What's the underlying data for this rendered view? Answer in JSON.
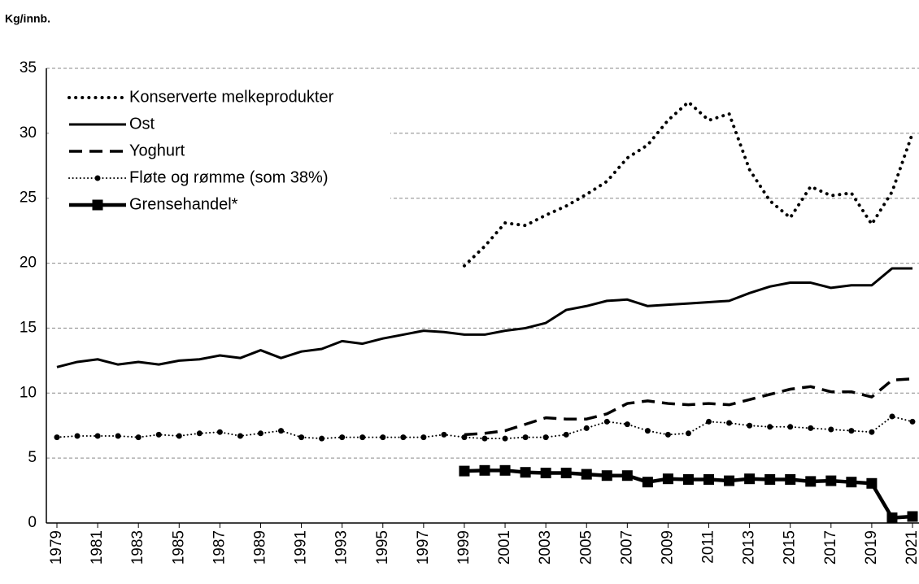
{
  "chart_data": {
    "type": "line",
    "y_axis_label": "Kg/innb.",
    "x": [
      1979,
      1980,
      1981,
      1982,
      1983,
      1984,
      1985,
      1986,
      1987,
      1988,
      1989,
      1990,
      1991,
      1992,
      1993,
      1994,
      1995,
      1996,
      1997,
      1998,
      1999,
      2000,
      2001,
      2002,
      2003,
      2004,
      2005,
      2006,
      2007,
      2008,
      2009,
      2010,
      2011,
      2012,
      2013,
      2014,
      2015,
      2016,
      2017,
      2018,
      2019,
      2020,
      2021
    ],
    "xlim": [
      1979,
      2021
    ],
    "xticks": [
      1979,
      1981,
      1983,
      1985,
      1987,
      1989,
      1991,
      1993,
      1995,
      1997,
      1999,
      2001,
      2003,
      2005,
      2007,
      2009,
      2011,
      2013,
      2015,
      2017,
      2019,
      2021
    ],
    "ylim": [
      0,
      35
    ],
    "yticks": [
      0,
      5,
      10,
      15,
      20,
      25,
      30,
      35
    ],
    "grid": true,
    "legend": "upper left",
    "series": [
      {
        "name": "Konserverte melkeprodukter",
        "color": "#000000",
        "line_style": "dotted-thick",
        "marker": null,
        "values": [
          null,
          null,
          null,
          null,
          null,
          null,
          null,
          null,
          null,
          null,
          null,
          null,
          null,
          null,
          null,
          null,
          null,
          null,
          null,
          null,
          19.8,
          21.3,
          23.1,
          22.9,
          23.7,
          24.4,
          25.3,
          26.3,
          28.1,
          29.1,
          31.0,
          32.4,
          31.0,
          31.5,
          27.2,
          24.8,
          23.5,
          25.9,
          25.2,
          25.4,
          23.0,
          25.5,
          30.0
        ]
      },
      {
        "name": "Ost",
        "color": "#000000",
        "line_style": "solid",
        "marker": null,
        "values": [
          12.0,
          12.4,
          12.6,
          12.2,
          12.4,
          12.2,
          12.5,
          12.6,
          12.9,
          12.7,
          13.3,
          12.7,
          13.2,
          13.4,
          14.0,
          13.8,
          14.2,
          14.5,
          14.8,
          14.7,
          14.5,
          14.5,
          14.8,
          15.0,
          15.4,
          16.4,
          16.7,
          17.1,
          17.2,
          16.7,
          16.8,
          16.9,
          17.0,
          17.1,
          17.7,
          18.2,
          18.5,
          18.5,
          18.1,
          18.3,
          18.3,
          19.6,
          19.6
        ]
      },
      {
        "name": "Yoghurt",
        "color": "#000000",
        "line_style": "dashed",
        "marker": null,
        "values": [
          null,
          null,
          null,
          null,
          null,
          null,
          null,
          null,
          null,
          null,
          null,
          null,
          null,
          null,
          null,
          null,
          null,
          null,
          null,
          null,
          6.8,
          6.9,
          7.1,
          7.6,
          8.1,
          8.0,
          8.0,
          8.4,
          9.2,
          9.4,
          9.2,
          9.1,
          9.2,
          9.1,
          9.5,
          9.9,
          10.3,
          10.5,
          10.1,
          10.1,
          9.7,
          11.0,
          11.1
        ]
      },
      {
        "name": "Fløte og rømme (som 38%)",
        "color": "#000000",
        "line_style": "dotted-thin",
        "marker": "circle",
        "values": [
          6.6,
          6.7,
          6.7,
          6.7,
          6.6,
          6.8,
          6.7,
          6.9,
          7.0,
          6.7,
          6.9,
          7.1,
          6.6,
          6.5,
          6.6,
          6.6,
          6.6,
          6.6,
          6.6,
          6.8,
          6.6,
          6.5,
          6.5,
          6.6,
          6.6,
          6.8,
          7.3,
          7.8,
          7.6,
          7.1,
          6.8,
          6.9,
          7.8,
          7.7,
          7.5,
          7.4,
          7.4,
          7.3,
          7.2,
          7.1,
          7.0,
          8.2,
          7.8
        ]
      },
      {
        "name": "Grensehandel*",
        "color": "#000000",
        "line_style": "solid-thick",
        "marker": "square",
        "values": [
          null,
          null,
          null,
          null,
          null,
          null,
          null,
          null,
          null,
          null,
          null,
          null,
          null,
          null,
          null,
          null,
          null,
          null,
          null,
          null,
          4.0,
          4.05,
          4.05,
          3.9,
          3.85,
          3.85,
          3.75,
          3.65,
          3.65,
          3.15,
          3.4,
          3.35,
          3.35,
          3.25,
          3.4,
          3.35,
          3.35,
          3.2,
          3.25,
          3.15,
          3.05,
          0.4,
          0.5
        ]
      }
    ]
  }
}
